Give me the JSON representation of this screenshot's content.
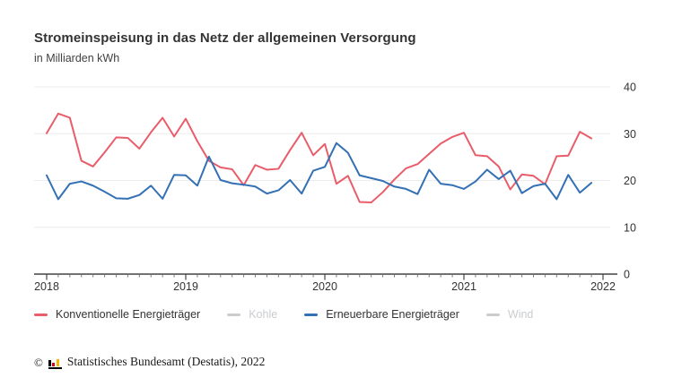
{
  "header": {
    "title": "Stromeinspeisung in das Netz der allgemeinen Versorgung",
    "subtitle": "in Milliarden kWh"
  },
  "chart_data": {
    "type": "line",
    "title": "Stromeinspeisung in das Netz der allgemeinen Versorgung",
    "ylabel": "Milliarden kWh",
    "xlabel": "",
    "x_tick_labels": [
      "2018",
      "2019",
      "2020",
      "2021",
      "2022"
    ],
    "y_ticks": [
      0,
      10,
      20,
      30,
      40
    ],
    "ylim": [
      0,
      40
    ],
    "x_range_months": 48,
    "grid": "horizontal",
    "legend_position": "bottom",
    "colors": {
      "conventional": "#e95d6a",
      "renewable": "#3370b4",
      "disabled": "#cccccc",
      "gridline": "#ececec",
      "axis": "#444444",
      "tick_minor": "#777777",
      "label": "#333333"
    },
    "series": [
      {
        "name": "Konventionelle Energieträger",
        "color": "#e95d6a",
        "enabled": true,
        "start": "2018-01",
        "values": [
          30.1,
          34.3,
          33.4,
          24.2,
          23.0,
          26.0,
          29.2,
          29.1,
          26.8,
          30.3,
          33.4,
          29.4,
          33.2,
          28.4,
          24.2,
          22.8,
          22.4,
          19.0,
          23.3,
          22.3,
          22.5,
          26.5,
          30.2,
          25.4,
          27.8,
          19.3,
          21.0,
          15.4,
          15.3,
          17.5,
          20.2,
          22.6,
          23.5,
          25.7,
          27.9,
          29.3,
          30.2,
          25.4,
          25.2,
          23.0,
          18.1,
          21.3,
          21.0,
          19.2,
          25.2,
          25.3,
          30.4,
          29.0
        ]
      },
      {
        "name": "Kohle",
        "color": "#cccccc",
        "enabled": false,
        "values": []
      },
      {
        "name": "Erneuerbare Energieträger",
        "color": "#3370b4",
        "enabled": true,
        "start": "2018-01",
        "values": [
          21.1,
          16.0,
          19.3,
          19.8,
          18.9,
          17.6,
          16.2,
          16.1,
          16.9,
          18.9,
          16.1,
          21.2,
          21.1,
          18.9,
          25.1,
          20.1,
          19.4,
          19.1,
          18.7,
          17.2,
          17.9,
          20.1,
          17.2,
          22.1,
          22.9,
          28.0,
          25.9,
          21.1,
          20.5,
          19.9,
          18.7,
          18.2,
          17.1,
          22.3,
          19.3,
          19.0,
          18.2,
          19.8,
          22.3,
          20.3,
          22.1,
          17.3,
          18.8,
          19.3,
          16.0,
          21.2,
          17.4,
          19.5
        ]
      },
      {
        "name": "Wind",
        "color": "#cccccc",
        "enabled": false,
        "values": []
      }
    ]
  },
  "footer": {
    "copyright": "©",
    "text": "Statistisches Bundesamt (Destatis), 2022"
  }
}
